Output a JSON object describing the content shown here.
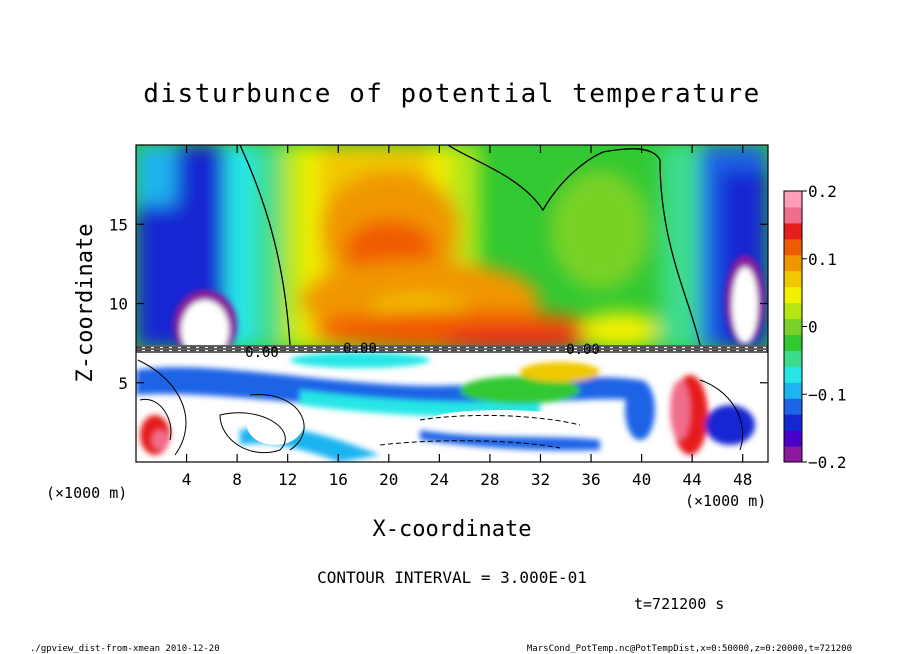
{
  "chart_data": {
    "type": "heatmap",
    "title": "disturbunce of potential temperature",
    "xlabel": "X-coordinate",
    "ylabel": "Z-coordinate",
    "x_unit": "(×1000 m)",
    "x_unit_left": "(×1000 m)",
    "xlim": [
      0,
      50
    ],
    "ylim": [
      0,
      20
    ],
    "x_ticks": [
      4,
      8,
      12,
      16,
      20,
      24,
      28,
      32,
      36,
      40,
      44,
      48
    ],
    "y_ticks": [
      5,
      10,
      15
    ],
    "colorbar": {
      "range": [
        -0.2,
        0.2
      ],
      "ticks": [
        "0.2",
        "0.1",
        "0",
        "−0.1",
        "−0.2"
      ],
      "tick_values": [
        0.2,
        0.1,
        0,
        -0.1,
        -0.2
      ],
      "colors": [
        "#8b1a9e",
        "#4b00c8",
        "#1428d2",
        "#1e64e6",
        "#1eb4f0",
        "#28e6e6",
        "#3cdc8c",
        "#32c832",
        "#78d228",
        "#b4e614",
        "#f0f000",
        "#f0c800",
        "#f09600",
        "#f05a00",
        "#e61e1e",
        "#f06e8c",
        "#ff9eb4"
      ]
    },
    "contour_labels": [
      "0.00",
      "0.00",
      "0.00"
    ],
    "contour_interval_text": "CONTOUR INTERVAL = 3.000E-01",
    "time_text": "t=721200 s",
    "footer_left": "./gpview_dist-from-xmean  2010-12-20",
    "footer_right": "MarsCond_PotTemp.nc@PotTempDist,x=0:50000,z=0:20000,t=721200"
  }
}
